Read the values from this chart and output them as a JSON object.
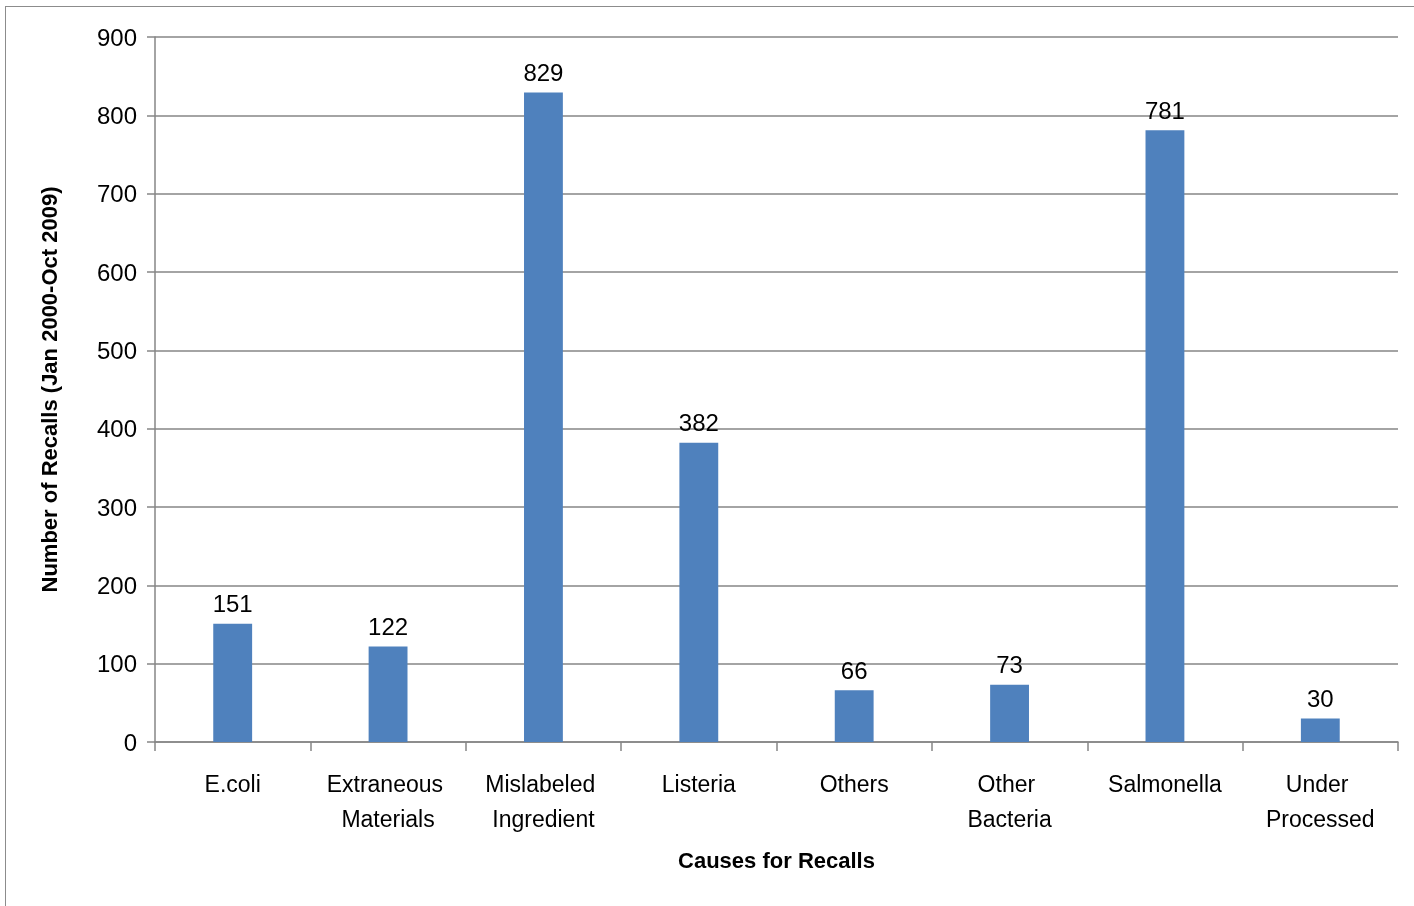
{
  "chart_data": {
    "type": "bar",
    "xlabel": "Causes for Recalls",
    "ylabel": "Number of Recalls (Jan 2000-Oct 2009)",
    "categories": [
      "E.coli",
      "Extraneous Materials",
      "Mislabeled Ingredient",
      "Listeria",
      "Others",
      "Other Bacteria",
      "Salmonella",
      "Under Processed"
    ],
    "values": [
      151,
      122,
      829,
      382,
      66,
      73,
      781,
      30
    ],
    "color": "#4f81bd",
    "ylim": [
      0,
      900
    ],
    "yticks": [
      0,
      100,
      200,
      300,
      400,
      500,
      600,
      700,
      800,
      900
    ],
    "grid": "y",
    "data_labels": true
  }
}
